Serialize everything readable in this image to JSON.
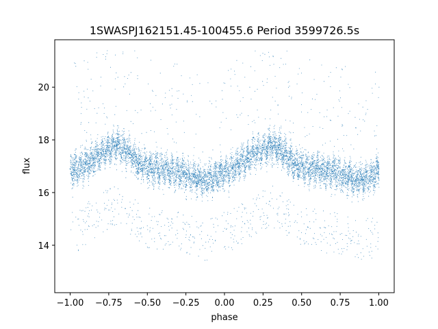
{
  "chart_data": {
    "type": "scatter",
    "title": "1SWASPJ162151.45-100455.6 Period 3599726.5s",
    "xlabel": "phase",
    "ylabel": "flux",
    "xlim": [
      -1.1,
      1.1
    ],
    "ylim": [
      12.2,
      21.8
    ],
    "xticks": [
      -1.0,
      -0.75,
      -0.5,
      -0.25,
      0.0,
      0.25,
      0.5,
      0.75,
      1.0
    ],
    "xtick_labels": [
      "−1.00",
      "−0.75",
      "−0.50",
      "−0.25",
      "0.00",
      "0.25",
      "0.50",
      "0.75",
      "1.00"
    ],
    "yticks": [
      14,
      16,
      18,
      20
    ],
    "ytick_labels": [
      "14",
      "16",
      "18",
      "20"
    ],
    "grid": false,
    "marker_color": "#1f77b4",
    "series": [
      {
        "x": [
          -1.0,
          -0.95,
          -0.9,
          -0.85,
          -0.8,
          -0.75,
          -0.7,
          -0.65,
          -0.6,
          -0.55,
          -0.5,
          -0.45,
          -0.4,
          -0.35,
          -0.3,
          -0.25,
          -0.2,
          -0.15,
          -0.1,
          -0.05,
          0.0,
          0.05,
          0.1,
          0.15,
          0.2,
          0.25,
          0.3,
          0.35,
          0.4,
          0.45,
          0.5,
          0.55,
          0.6,
          0.65,
          0.7,
          0.75,
          0.8,
          0.85,
          0.9,
          0.95,
          1.0
        ],
        "y": [
          16.9,
          16.9,
          17.1,
          17.3,
          17.5,
          17.7,
          17.8,
          17.7,
          17.4,
          17.1,
          17.0,
          16.9,
          16.9,
          16.8,
          16.8,
          16.7,
          16.6,
          16.5,
          16.5,
          16.6,
          16.8,
          16.9,
          17.1,
          17.3,
          17.5,
          17.7,
          17.8,
          17.7,
          17.4,
          17.1,
          17.0,
          16.9,
          16.9,
          16.8,
          16.8,
          16.7,
          16.6,
          16.5,
          16.5,
          16.6,
          16.9
        ]
      }
    ]
  }
}
